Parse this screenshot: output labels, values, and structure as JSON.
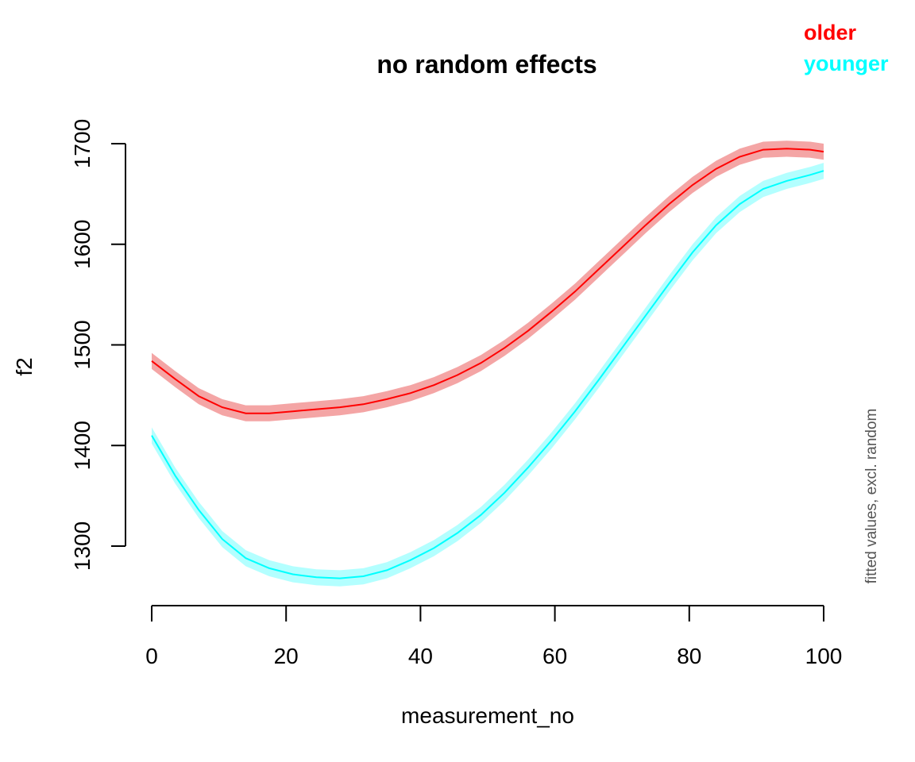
{
  "chart_data": {
    "type": "line",
    "title": "no random effects",
    "xlabel": "measurement_no",
    "ylabel": "f2",
    "side_note": "fitted values, excl. random",
    "xlim": [
      0,
      100
    ],
    "ylim": [
      1300,
      1700
    ],
    "x_ticks": [
      0,
      20,
      40,
      60,
      80,
      100
    ],
    "y_ticks": [
      1300,
      1400,
      1500,
      1600,
      1700
    ],
    "grid": false,
    "legend_position": "top-right",
    "x": [
      0,
      3.5,
      7,
      10.5,
      14,
      17.5,
      21,
      24.5,
      28,
      31.5,
      35,
      38.5,
      42,
      45.5,
      49,
      52.5,
      56,
      59.5,
      63,
      66.5,
      70,
      73.5,
      77,
      80.5,
      84,
      87.5,
      91,
      94.5,
      98,
      100
    ],
    "series": [
      {
        "name": "older",
        "color": "#ff0000",
        "band_color": "#f4a5a5",
        "values": [
          1484,
          1466,
          1449,
          1438,
          1432,
          1432,
          1434,
          1436,
          1438,
          1441,
          1446,
          1452,
          1460,
          1470,
          1482,
          1497,
          1514,
          1533,
          1553,
          1575,
          1597,
          1619,
          1640,
          1659,
          1675,
          1687,
          1694,
          1695,
          1694,
          1692
        ],
        "ci_halfwidth": 8
      },
      {
        "name": "younger",
        "color": "#00ffff",
        "band_color": "#b3ffff",
        "values": [
          1410,
          1370,
          1336,
          1307,
          1288,
          1278,
          1272,
          1269,
          1268,
          1270,
          1276,
          1286,
          1298,
          1313,
          1331,
          1353,
          1378,
          1405,
          1434,
          1465,
          1497,
          1529,
          1561,
          1592,
          1619,
          1640,
          1655,
          1663,
          1669,
          1673
        ],
        "ci_halfwidth": 8
      }
    ]
  }
}
